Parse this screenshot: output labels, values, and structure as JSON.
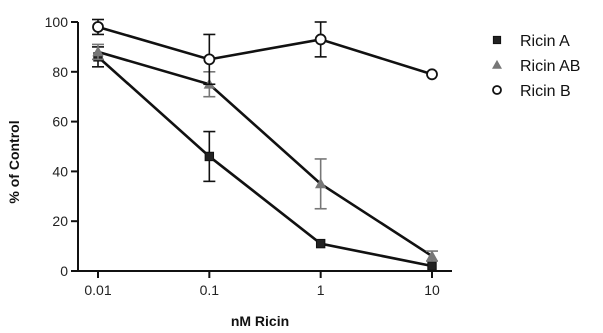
{
  "chart_data": {
    "type": "line",
    "title": "",
    "xlabel": "nM Ricin",
    "ylabel": "% of Control",
    "x_scale": "log",
    "x": [
      0.01,
      0.1,
      1,
      10
    ],
    "x_tick_labels": [
      "0.01",
      "0.1",
      "1",
      "10"
    ],
    "ylim": [
      0,
      100
    ],
    "y_ticks": [
      0,
      20,
      40,
      60,
      80,
      100
    ],
    "grid": false,
    "legend_position": "top-right",
    "series": [
      {
        "name": "Ricin A",
        "marker": "square",
        "marker_fill": "#222222",
        "color": "#111111",
        "values": [
          86,
          46,
          11,
          2
        ],
        "errors": [
          4,
          10,
          0,
          0
        ]
      },
      {
        "name": "Ricin AB",
        "marker": "triangle",
        "marker_fill": "#777777",
        "color": "#111111",
        "values": [
          88,
          75,
          35,
          6
        ],
        "errors": [
          3,
          5,
          10,
          2
        ]
      },
      {
        "name": "Ricin B",
        "marker": "circle",
        "marker_fill": "#ffffff",
        "color": "#111111",
        "values": [
          98,
          85,
          93,
          79
        ],
        "errors": [
          3,
          10,
          7,
          0
        ]
      }
    ]
  }
}
